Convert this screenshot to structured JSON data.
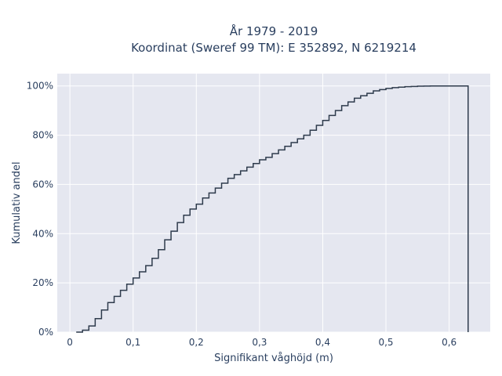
{
  "chart_data": {
    "type": "line",
    "title_lines": [
      "År 1979 - 2019",
      "Koordinat (Sweref 99 TM): E 352892, N 6219214"
    ],
    "xlabel": "Signifikant våghöjd (m)",
    "ylabel": "Kumulativ andel",
    "xlim": [
      -0.02,
      0.665
    ],
    "ylim": [
      0,
      1.05
    ],
    "x_ticks": [
      0,
      0.1,
      0.2,
      0.3,
      0.4,
      0.5,
      0.6
    ],
    "x_tick_labels": [
      "0",
      "0,1",
      "0,2",
      "0,3",
      "0,4",
      "0,5",
      "0,6"
    ],
    "y_ticks": [
      0,
      0.2,
      0.4,
      0.6,
      0.8,
      1.0
    ],
    "y_tick_labels": [
      "0%",
      "20%",
      "40%",
      "60%",
      "80%",
      "100%"
    ],
    "grid": true,
    "step": true,
    "series": [
      {
        "x": [
          0.01,
          0.02,
          0.03,
          0.04,
          0.05,
          0.06,
          0.07,
          0.08,
          0.09,
          0.1,
          0.11,
          0.12,
          0.13,
          0.14,
          0.15,
          0.16,
          0.17,
          0.18,
          0.19,
          0.2,
          0.21,
          0.22,
          0.23,
          0.24,
          0.25,
          0.26,
          0.27,
          0.28,
          0.29,
          0.3,
          0.31,
          0.32,
          0.33,
          0.34,
          0.35,
          0.36,
          0.37,
          0.38,
          0.39,
          0.4,
          0.41,
          0.42,
          0.43,
          0.44,
          0.45,
          0.46,
          0.47,
          0.48,
          0.49,
          0.5,
          0.51,
          0.52,
          0.53,
          0.54,
          0.55,
          0.56,
          0.57,
          0.58,
          0.59,
          0.6,
          0.63
        ],
        "y": [
          0.0,
          0.008,
          0.025,
          0.055,
          0.09,
          0.12,
          0.145,
          0.17,
          0.195,
          0.22,
          0.245,
          0.27,
          0.3,
          0.335,
          0.375,
          0.41,
          0.445,
          0.475,
          0.5,
          0.52,
          0.545,
          0.565,
          0.585,
          0.605,
          0.625,
          0.64,
          0.655,
          0.67,
          0.685,
          0.7,
          0.71,
          0.725,
          0.74,
          0.755,
          0.77,
          0.785,
          0.8,
          0.82,
          0.84,
          0.86,
          0.88,
          0.9,
          0.92,
          0.935,
          0.95,
          0.96,
          0.97,
          0.98,
          0.985,
          0.99,
          0.993,
          0.995,
          0.997,
          0.998,
          0.999,
          0.9995,
          1.0,
          1.0,
          1.0,
          1.0,
          1.0
        ],
        "end_x": 0.63,
        "color": "#2e3b4c"
      }
    ],
    "colors": {
      "plot_background": "#e5e7f0",
      "grid": "#ffffff",
      "text": "#2a3f5f"
    }
  }
}
